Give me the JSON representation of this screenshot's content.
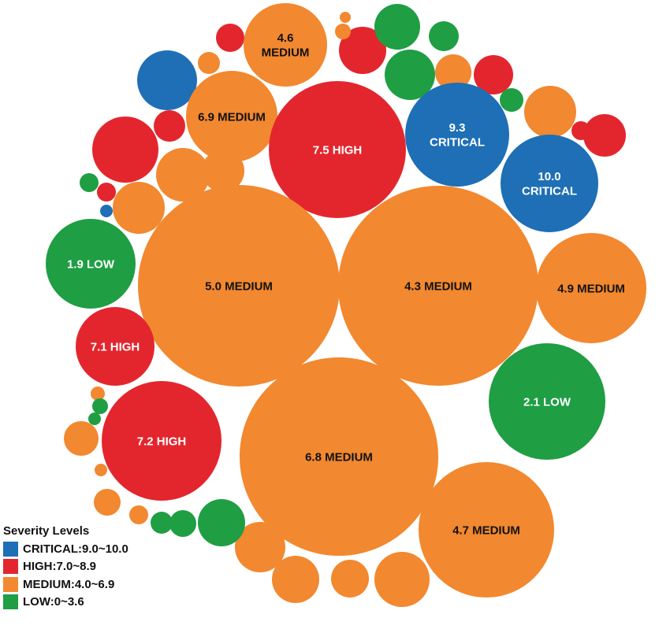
{
  "chart_data": {
    "type": "bubble",
    "title": "",
    "legend": {
      "title": "Severity Levels",
      "placement": "bottom-left",
      "entries": [
        {
          "level": "CRITICAL",
          "label": "CRITICAL:9.0~10.0",
          "color": "#1e6fb5"
        },
        {
          "level": "HIGH",
          "label": "HIGH:7.0~8.9",
          "color": "#e3262e"
        },
        {
          "level": "MEDIUM",
          "label": "MEDIUM:4.0~6.9",
          "color": "#f2882f"
        },
        {
          "level": "LOW",
          "label": "LOW:0~3.6",
          "color": "#1f9e44"
        }
      ]
    },
    "labeled_bubbles": [
      {
        "score": 4.6,
        "severity": "MEDIUM",
        "text": [
          "4.6",
          "MEDIUM"
        ]
      },
      {
        "score": 6.9,
        "severity": "MEDIUM",
        "text": [
          "6.9  MEDIUM"
        ]
      },
      {
        "score": 7.5,
        "severity": "HIGH",
        "text": [
          "7.5 HIGH"
        ]
      },
      {
        "score": 9.3,
        "severity": "CRITICAL",
        "text": [
          "9.3",
          "CRITICAL"
        ]
      },
      {
        "score": 10.0,
        "severity": "CRITICAL",
        "text": [
          "10.0",
          "CRITICAL"
        ]
      },
      {
        "score": 1.9,
        "severity": "LOW",
        "text": [
          "1.9 LOW"
        ]
      },
      {
        "score": 5.0,
        "severity": "MEDIUM",
        "text": [
          "5.0 MEDIUM"
        ]
      },
      {
        "score": 4.3,
        "severity": "MEDIUM",
        "text": [
          "4.3 MEDIUM"
        ]
      },
      {
        "score": 4.9,
        "severity": "MEDIUM",
        "text": [
          "4.9  MEDIUM"
        ]
      },
      {
        "score": 7.1,
        "severity": "HIGH",
        "text": [
          "7.1 HIGH"
        ]
      },
      {
        "score": 2.1,
        "severity": "LOW",
        "text": [
          "2.1  LOW"
        ]
      },
      {
        "score": 7.2,
        "severity": "HIGH",
        "text": [
          "7.2  HIGH"
        ]
      },
      {
        "score": 6.8,
        "severity": "MEDIUM",
        "text": [
          "6.8 MEDIUM"
        ]
      },
      {
        "score": 4.7,
        "severity": "MEDIUM",
        "text": [
          "4.7  MEDIUM"
        ]
      }
    ],
    "unlabeled_bubbles": [
      {
        "severity": "CRITICAL"
      },
      {
        "severity": "CRITICAL"
      },
      {
        "severity": "HIGH"
      },
      {
        "severity": "HIGH"
      },
      {
        "severity": "HIGH"
      },
      {
        "severity": "HIGH"
      },
      {
        "severity": "HIGH"
      },
      {
        "severity": "HIGH"
      },
      {
        "severity": "HIGH"
      },
      {
        "severity": "HIGH"
      },
      {
        "severity": "MEDIUM"
      },
      {
        "severity": "MEDIUM"
      },
      {
        "severity": "MEDIUM"
      },
      {
        "severity": "MEDIUM"
      },
      {
        "severity": "MEDIUM"
      },
      {
        "severity": "MEDIUM"
      },
      {
        "severity": "MEDIUM"
      },
      {
        "severity": "MEDIUM"
      },
      {
        "severity": "MEDIUM"
      },
      {
        "severity": "MEDIUM"
      },
      {
        "severity": "MEDIUM"
      },
      {
        "severity": "MEDIUM"
      },
      {
        "severity": "MEDIUM"
      },
      {
        "severity": "MEDIUM"
      },
      {
        "severity": "MEDIUM"
      },
      {
        "severity": "MEDIUM"
      },
      {
        "severity": "MEDIUM"
      },
      {
        "severity": "LOW"
      },
      {
        "severity": "LOW"
      },
      {
        "severity": "LOW"
      },
      {
        "severity": "LOW"
      },
      {
        "severity": "LOW"
      },
      {
        "severity": "LOW"
      },
      {
        "severity": "LOW"
      },
      {
        "severity": "LOW"
      },
      {
        "severity": "LOW"
      },
      {
        "severity": "LOW"
      }
    ]
  }
}
